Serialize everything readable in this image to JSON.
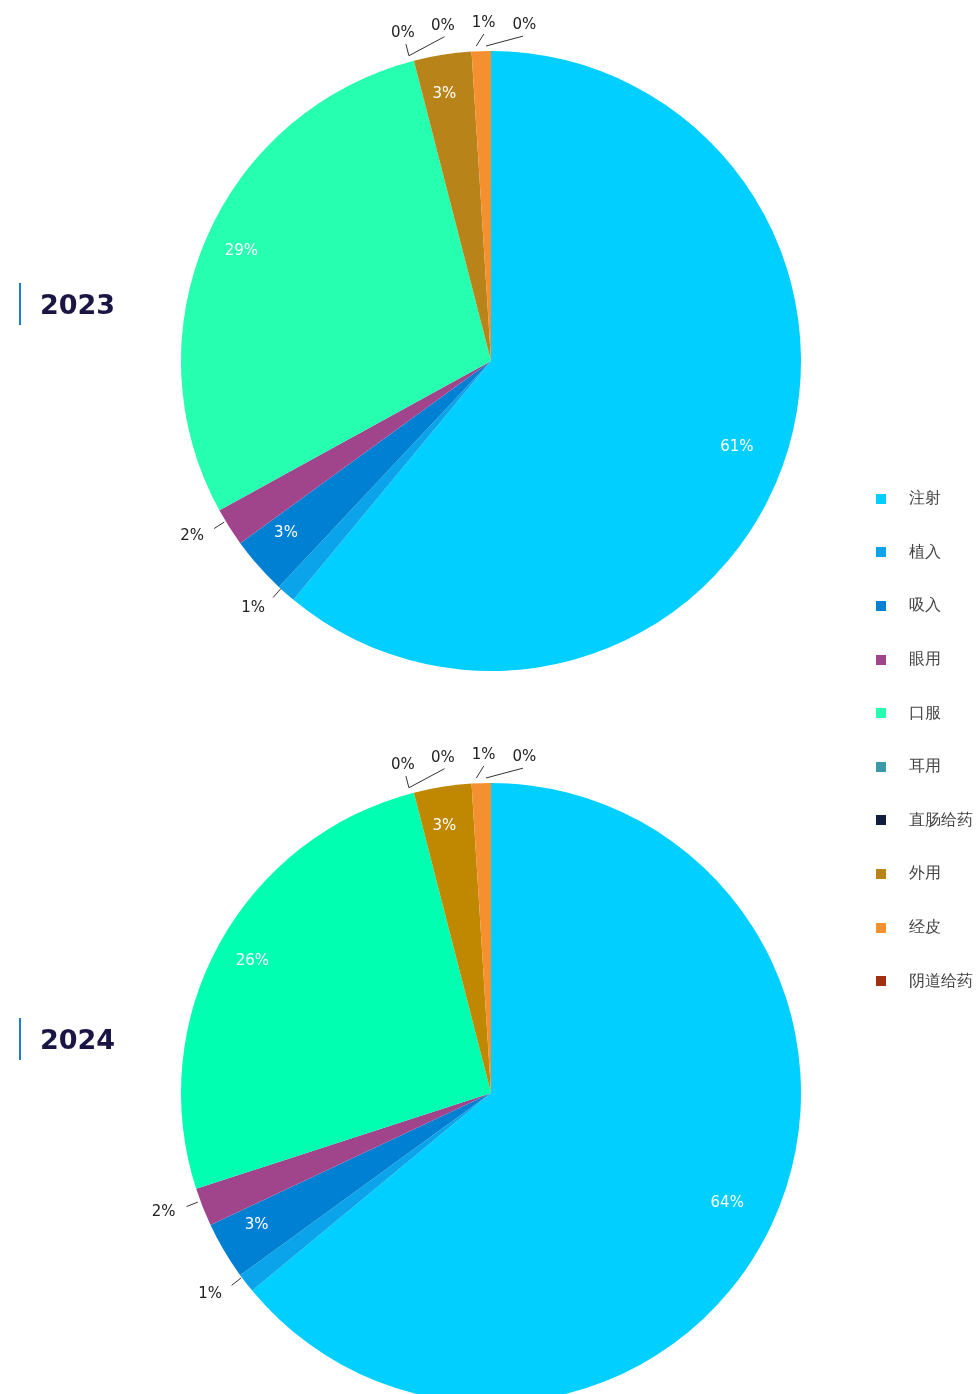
{
  "chart_data": {
    "type": "pie",
    "categories": [
      "注射",
      "植入",
      "吸入",
      "眼用",
      "口服",
      "耳用",
      "直肠给药",
      "外用",
      "经皮",
      "阴道给药"
    ],
    "legend": "right",
    "series": [
      {
        "name": "2023",
        "values": [
          61,
          1,
          3,
          2,
          29,
          0,
          0,
          3,
          1,
          0
        ],
        "value_labels": [
          "61%",
          "1%",
          "3%",
          "2%",
          "29%",
          "0%",
          "0%",
          "3%",
          "1%",
          "0%"
        ],
        "colors": [
          "#00cfff",
          "#0ba3ea",
          "#0080d2",
          "#a0448c",
          "#26ffb0",
          "#3a9aa8",
          "#101c40",
          "#b8841a",
          "#f59030",
          "#a03010"
        ]
      },
      {
        "name": "2024",
        "values": [
          64,
          1,
          3,
          2,
          26,
          0,
          0,
          3,
          1,
          0
        ],
        "value_labels": [
          "64%",
          "1%",
          "3%",
          "2%",
          "26%",
          "0%",
          "0%",
          "3%",
          "1%",
          "0%"
        ],
        "colors": [
          "#00cfff",
          "#0ba3ea",
          "#0080d2",
          "#a0448c",
          "#00ffb0",
          "#3a9aa8",
          "#101c40",
          "#c08800",
          "#f59030",
          "#a03010"
        ]
      }
    ]
  }
}
